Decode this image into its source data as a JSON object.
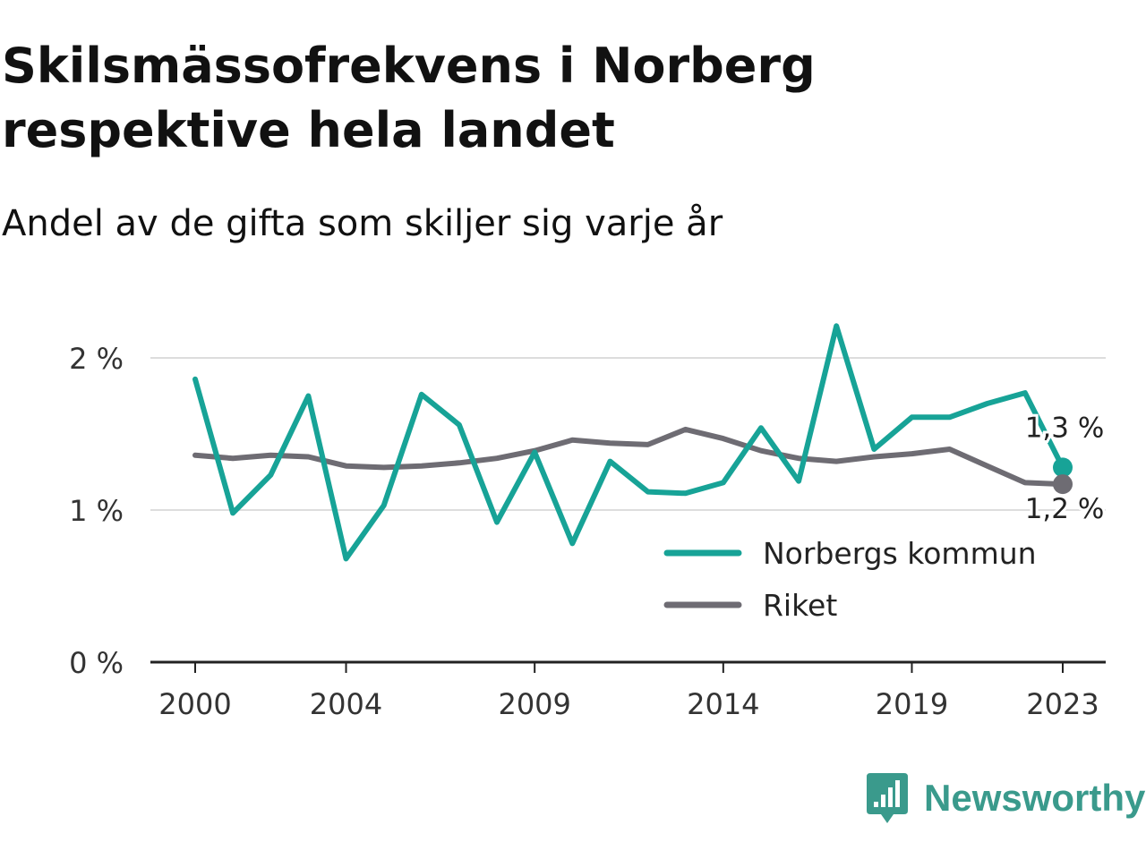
{
  "title": "Skilsmässofrekvens i Norberg respektive hela landet",
  "subtitle": "Andel av de gifta som skiljer sig varje år",
  "brand": {
    "name": "Newsworthy",
    "icon": "newsworthy-logo-icon",
    "color": "#3a9a8c"
  },
  "colors": {
    "norberg": "#17a397",
    "riket": "#6e6c73",
    "grid": "#dddddd",
    "axis": "#222222"
  },
  "chart_data": {
    "type": "line",
    "x": [
      2000,
      2001,
      2002,
      2003,
      2004,
      2005,
      2006,
      2007,
      2008,
      2009,
      2010,
      2011,
      2012,
      2013,
      2014,
      2015,
      2016,
      2017,
      2018,
      2019,
      2020,
      2021,
      2022,
      2023
    ],
    "x_ticks": [
      "2000",
      "2004",
      "2009",
      "2014",
      "2019",
      "2023"
    ],
    "y_ticks": [
      "0 %",
      "1 %",
      "2 %"
    ],
    "ylim": [
      0,
      2.3
    ],
    "grid": "horizontal",
    "legend_position": "bottom-right",
    "series": [
      {
        "name": "Norbergs kommun",
        "color": "#17a397",
        "values": [
          1.86,
          0.98,
          1.23,
          1.75,
          0.68,
          1.03,
          1.76,
          1.56,
          0.92,
          1.38,
          0.78,
          1.32,
          1.12,
          1.11,
          1.18,
          1.54,
          1.19,
          2.21,
          1.4,
          1.61,
          1.61,
          1.7,
          1.77,
          1.28
        ],
        "end_label": "1,3 %"
      },
      {
        "name": "Riket",
        "color": "#6e6c73",
        "values": [
          1.36,
          1.34,
          1.36,
          1.35,
          1.29,
          1.28,
          1.29,
          1.31,
          1.34,
          1.39,
          1.46,
          1.44,
          1.43,
          1.53,
          1.47,
          1.39,
          1.34,
          1.32,
          1.35,
          1.37,
          1.4,
          1.29,
          1.18,
          1.17
        ],
        "end_label": "1,2 %"
      }
    ]
  }
}
